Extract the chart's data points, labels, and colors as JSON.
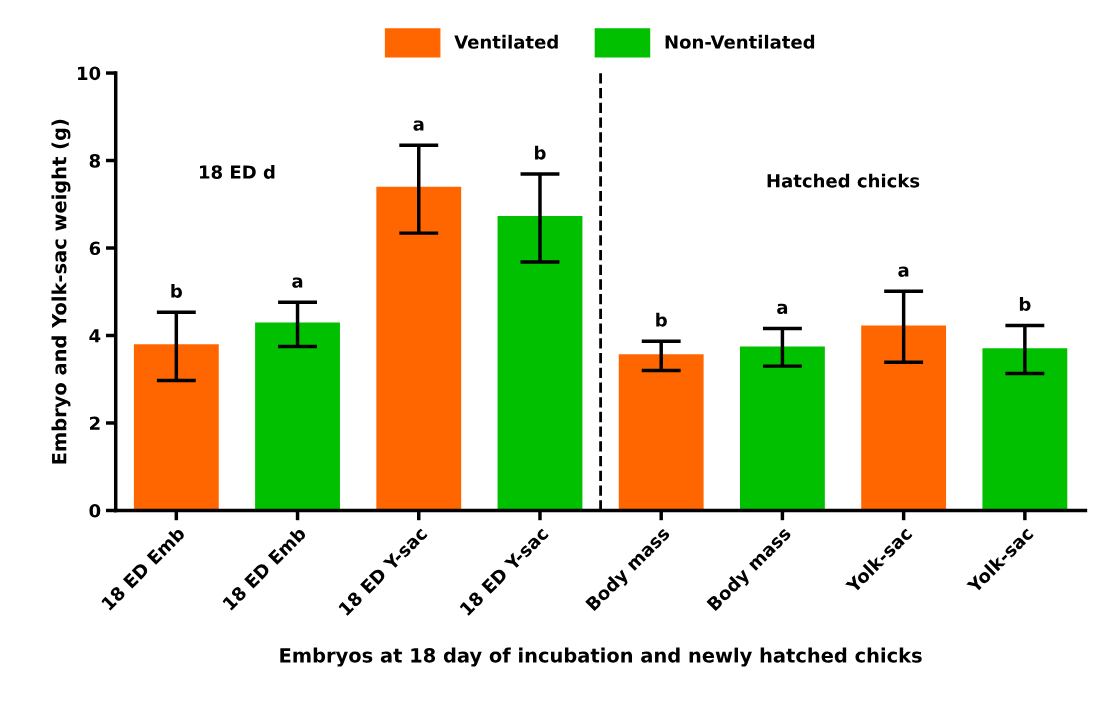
{
  "chart_data": {
    "type": "bar",
    "ylabel": "Embryo and Yolk-sac weight (g)",
    "xlabel": "Embryos at 18 day of incubation and newly hatched chicks",
    "categories": [
      "18 ED Emb",
      "18 ED Emb",
      "18 ED Y-sac",
      "18 ED Y-sac",
      "Body mass",
      "Body mass",
      "Yolk-sac",
      "Yolk-sac"
    ],
    "series": [
      {
        "name": "Ventilated",
        "color": "#ff6600",
        "values": [
          3.8,
          null,
          7.4,
          null,
          3.57,
          null,
          4.23,
          null
        ],
        "errors": [
          [
            2.97,
            4.53
          ],
          null,
          [
            6.34,
            8.35
          ],
          null,
          [
            3.2,
            3.87
          ],
          null,
          [
            3.39,
            5.01
          ],
          null
        ]
      },
      {
        "name": "Non-Ventilated",
        "color": "#00c000",
        "values": [
          null,
          4.3,
          null,
          6.73,
          null,
          3.75,
          null,
          3.71
        ],
        "errors": [
          null,
          [
            3.75,
            4.76
          ],
          null,
          [
            5.68,
            7.69
          ],
          null,
          [
            3.3,
            4.16
          ],
          null,
          [
            3.13,
            4.23
          ]
        ]
      }
    ],
    "ylim": [
      0,
      10
    ],
    "yticks": [
      0,
      2,
      4,
      6,
      8,
      10
    ],
    "grid": false,
    "legend": "top",
    "annotations": [
      "b",
      "a",
      "a",
      "b",
      "b",
      "a",
      "a",
      "b",
      "18 ED d",
      "Hatched chicks"
    ]
  }
}
